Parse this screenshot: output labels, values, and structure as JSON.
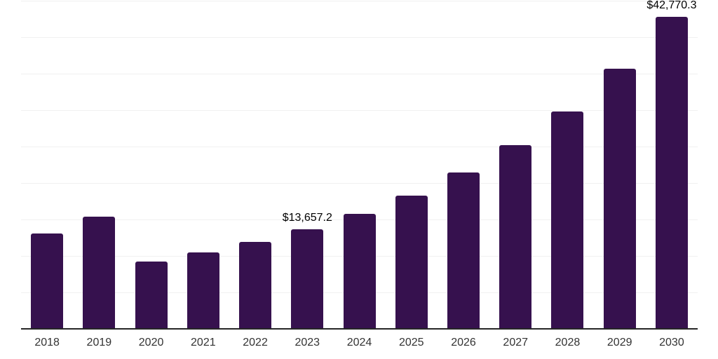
{
  "chart_data": {
    "type": "bar",
    "title": "",
    "xlabel": "",
    "ylabel": "",
    "categories": [
      "2018",
      "2019",
      "2020",
      "2021",
      "2022",
      "2023",
      "2024",
      "2025",
      "2026",
      "2027",
      "2028",
      "2029",
      "2030"
    ],
    "values": [
      13100,
      15400,
      9200,
      10500,
      11900,
      13657.2,
      15800,
      18300,
      21450,
      25200,
      29800,
      35700,
      42770.3
    ],
    "data_labels": {
      "2023": "$13,657.2",
      "2030": "$42,770.3"
    },
    "ylim": [
      0,
      45200
    ],
    "gridline_step": 5000,
    "gridlines_visible": true,
    "y_tick_labels_visible": false,
    "legend_position": "none",
    "colors": {
      "bar": "#36114E",
      "gridline": "#F0F0F0",
      "axis_line": "#262626",
      "tick_label": "#333333",
      "data_label": "#000000",
      "background": "#FFFFFF"
    }
  }
}
